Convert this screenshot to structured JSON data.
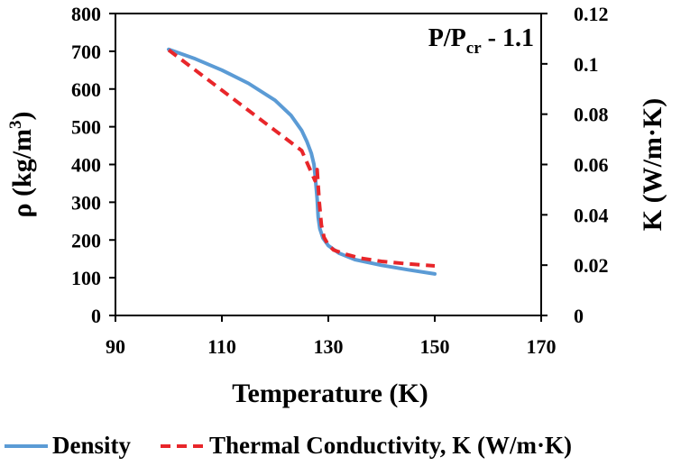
{
  "chart_data": {
    "type": "line",
    "xlabel": "Temperature (K)",
    "ylabel_left": "ρ (kg/m³)",
    "ylabel_left_parts": {
      "rho": "ρ",
      "open": "(kg/m",
      "sup": "3",
      "close": ")"
    },
    "ylabel_right": "K (W/m·K)",
    "annotation": {
      "p": "P/P",
      "sub": "cr",
      "rest": " - 1.1"
    },
    "xlim": [
      90,
      170
    ],
    "xticks": [
      90,
      110,
      130,
      150,
      170
    ],
    "ylim_left": [
      0,
      800
    ],
    "yticks_left": [
      0,
      100,
      200,
      300,
      400,
      500,
      600,
      700,
      800
    ],
    "ylim_right": [
      0,
      0.12
    ],
    "yticks_right": [
      "0",
      "0.02",
      "0.04",
      "0.06",
      "0.08",
      "0.1",
      "0.12"
    ],
    "grid": false,
    "legend_position": "bottom",
    "series": [
      {
        "name": "Density",
        "axis": "left",
        "color": "#5b9bd5",
        "style": "solid",
        "x": [
          100,
          105,
          110,
          115,
          120,
          123,
          125,
          126,
          126.8,
          127.3,
          127.6,
          127.9,
          128.1,
          128.4,
          129,
          130,
          132,
          135,
          140,
          145,
          150
        ],
        "y": [
          705,
          680,
          650,
          615,
          570,
          530,
          490,
          460,
          430,
          400,
          360,
          310,
          260,
          230,
          205,
          185,
          165,
          148,
          133,
          121,
          110
        ]
      },
      {
        "name": "Thermal Conductivity, K (W/m·K)",
        "axis": "right",
        "color": "#e8262a",
        "style": "dashed",
        "x": [
          100,
          105,
          110,
          115,
          120,
          125,
          127.5,
          127.9,
          128.3,
          128.7,
          129.2,
          130,
          131,
          133,
          136,
          140,
          145,
          150
        ],
        "y": [
          0.1055,
          0.0975,
          0.0895,
          0.0815,
          0.0735,
          0.0655,
          0.0535,
          0.058,
          0.045,
          0.036,
          0.031,
          0.028,
          0.026,
          0.0245,
          0.0228,
          0.0215,
          0.0205,
          0.0197
        ]
      }
    ]
  }
}
